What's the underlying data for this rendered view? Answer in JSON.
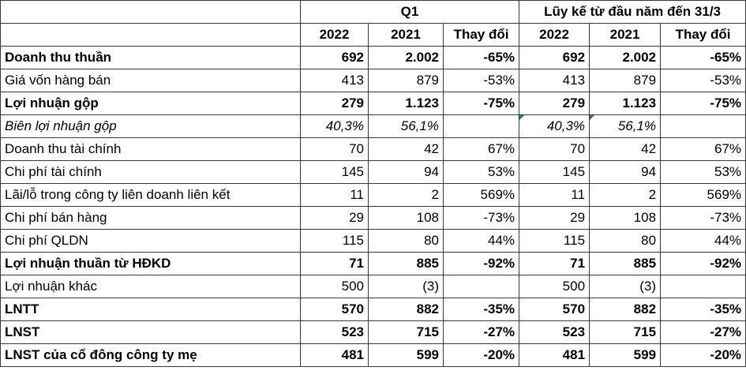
{
  "header": {
    "group_q1": "Q1",
    "group_ytd": "Lũy kế từ đầu năm đến 31/3",
    "columns": [
      "2022",
      "2021",
      "Thay đổi",
      "2022",
      "2021",
      "Thay đổi"
    ]
  },
  "rows": [
    {
      "label": "Doanh thu thuần",
      "bold": true,
      "italic": false,
      "values": [
        "692",
        "2.002",
        "-65%",
        "692",
        "2.002",
        "-65%"
      ]
    },
    {
      "label": "Giá vốn hàng bán",
      "bold": false,
      "italic": false,
      "values": [
        "413",
        "879",
        "-53%",
        "413",
        "879",
        "-53%"
      ]
    },
    {
      "label": "Lợi nhuận gộp",
      "bold": true,
      "italic": false,
      "values": [
        "279",
        "1.123",
        "-75%",
        "279",
        "1.123",
        "-75%"
      ]
    },
    {
      "label": "Biên lợi nhuận gộp",
      "bold": false,
      "italic": true,
      "values": [
        "40,3%",
        "56,1%",
        "",
        "40,3%",
        "56,1%",
        ""
      ]
    },
    {
      "label": "Doanh thu tài chính",
      "bold": false,
      "italic": false,
      "values": [
        "70",
        "42",
        "67%",
        "70",
        "42",
        "67%"
      ]
    },
    {
      "label": "Chi phí tài chính",
      "bold": false,
      "italic": false,
      "values": [
        "145",
        "94",
        "53%",
        "145",
        "94",
        "53%"
      ]
    },
    {
      "label": "Lãi/lỗ trong công ty liên doanh liên kết",
      "bold": false,
      "italic": false,
      "values": [
        "11",
        "2",
        "569%",
        "11",
        "2",
        "569%"
      ]
    },
    {
      "label": "Chi phí bán hàng",
      "bold": false,
      "italic": false,
      "values": [
        "29",
        "108",
        "-73%",
        "29",
        "108",
        "-73%"
      ]
    },
    {
      "label": "Chi phí QLDN",
      "bold": false,
      "italic": false,
      "values": [
        "115",
        "80",
        "44%",
        "115",
        "80",
        "44%"
      ]
    },
    {
      "label": "Lợi nhuận thuần từ HĐKD",
      "bold": true,
      "italic": false,
      "values": [
        "71",
        "885",
        "-92%",
        "71",
        "885",
        "-92%"
      ]
    },
    {
      "label": "Lợi nhuận khác",
      "bold": false,
      "italic": false,
      "values": [
        "500",
        "(3)",
        "",
        "500",
        "(3)",
        ""
      ]
    },
    {
      "label": "LNTT",
      "bold": true,
      "italic": false,
      "values": [
        "570",
        "882",
        "-35%",
        "570",
        "882",
        "-35%"
      ]
    },
    {
      "label": "LNST",
      "bold": true,
      "italic": false,
      "values": [
        "523",
        "715",
        "-27%",
        "523",
        "715",
        "-27%"
      ]
    },
    {
      "label": "LNST của cổ đông công ty mẹ",
      "bold": true,
      "italic": false,
      "values": [
        "481",
        "599",
        "-20%",
        "481",
        "599",
        "-20%"
      ]
    }
  ],
  "colors": {
    "border": "#3a3a3a",
    "marker": "#1e8a3a"
  }
}
